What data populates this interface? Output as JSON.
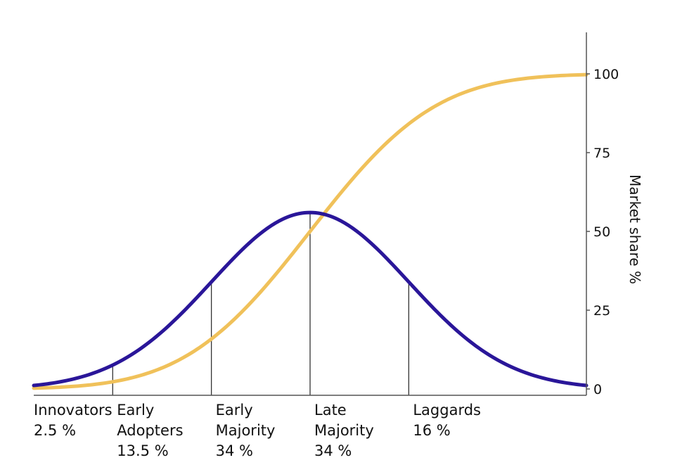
{
  "chart_data": {
    "type": "line",
    "title": "",
    "xlabel": "",
    "ylabel": "Market share %",
    "ylim": [
      0,
      100
    ],
    "y_ticks": [
      "0",
      "25",
      "50",
      "75",
      "100"
    ],
    "y_axis_position": "right",
    "grid": false,
    "legend": "none",
    "colors": {
      "adoption": "#2a1699",
      "market_share": "#f0c15a",
      "divider": "#333333",
      "axis": "#555555"
    },
    "curves": {
      "adoption": {
        "shape": "bell",
        "mean": 0,
        "sd": 1,
        "peak_value": 56,
        "x_range": [
          -2.8,
          2.8
        ]
      },
      "market_share": {
        "shape": "cumulative",
        "mean": 0,
        "sd": 1,
        "max_value": 100,
        "x_range": [
          -2.8,
          2.8
        ]
      }
    },
    "categories": [
      {
        "line1": "Innovators",
        "line2": "2.5 %",
        "line3": "",
        "x_start_sd": -2.8,
        "x_end_sd": -2
      },
      {
        "line1": "Early",
        "line2": "Adopters",
        "line3": "13.5 %",
        "x_start_sd": -2,
        "x_end_sd": -1
      },
      {
        "line1": "Early",
        "line2": "Majority",
        "line3": "34 %",
        "x_start_sd": -1,
        "x_end_sd": 0
      },
      {
        "line1": "Late",
        "line2": "Majority",
        "line3": "34 %",
        "x_start_sd": 0,
        "x_end_sd": 1
      },
      {
        "line1": "Laggards",
        "line2": "16 %",
        "line3": "",
        "x_start_sd": 1,
        "x_end_sd": 2.8
      }
    ],
    "dividers_sd": [
      -2,
      -1,
      0,
      1
    ]
  }
}
